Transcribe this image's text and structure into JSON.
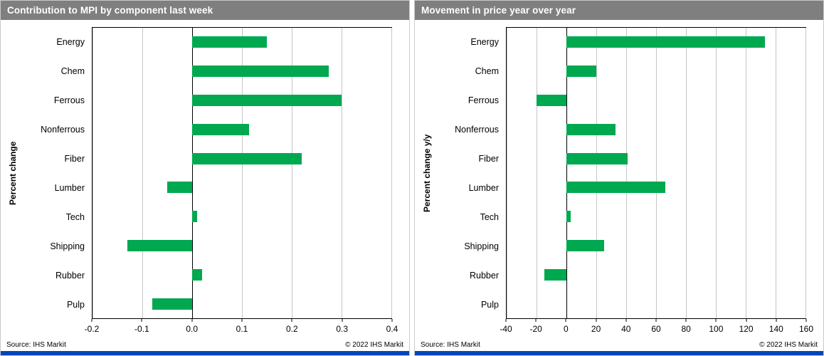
{
  "colors": {
    "bar_green": "#00A850",
    "header_background": "#7F7F7F",
    "header_text": "#FFFFFF",
    "accent_bar_blue": "#0047BB",
    "gridline": "#C6C6C6",
    "axis": "#000000"
  },
  "chart_data": [
    {
      "type": "bar",
      "orientation": "horizontal",
      "title": "Contribution to MPI by component last week",
      "ylabel": "Percent change",
      "xlabel": "",
      "categories": [
        "Energy",
        "Chem",
        "Ferrous",
        "Nonferrous",
        "Fiber",
        "Lumber",
        "Tech",
        "Shipping",
        "Rubber",
        "Pulp"
      ],
      "values": [
        0.15,
        0.275,
        0.3,
        0.115,
        0.22,
        -0.05,
        0.01,
        -0.13,
        0.02,
        -0.08
      ],
      "xlim": [
        -0.2,
        0.4
      ],
      "xticks": [
        -0.2,
        -0.1,
        0,
        0.1,
        0.2,
        0.3,
        0.4
      ],
      "xtick_labels": [
        "-0.2",
        "-0.1",
        "0.0",
        "0.1",
        "0.2",
        "0.3",
        "0.4"
      ],
      "grid": "vertical",
      "source": "Source: IHS Markit",
      "copyright": "© 2022  IHS Markit"
    },
    {
      "type": "bar",
      "orientation": "horizontal",
      "title": "Movement in price year over year",
      "ylabel": "Percent change y/y",
      "xlabel": "",
      "categories": [
        "Energy",
        "Chem",
        "Ferrous",
        "Nonferrous",
        "Fiber",
        "Lumber",
        "Tech",
        "Shipping",
        "Rubber",
        "Pulp"
      ],
      "values": [
        133,
        20,
        -20,
        33,
        41,
        66,
        3,
        25,
        -15,
        0
      ],
      "xlim": [
        -40,
        160
      ],
      "xticks": [
        -40,
        -20,
        0,
        20,
        40,
        60,
        80,
        100,
        120,
        140,
        160
      ],
      "xtick_labels": [
        "-40",
        "-20",
        "0",
        "20",
        "40",
        "60",
        "80",
        "100",
        "120",
        "140",
        "160"
      ],
      "grid": "vertical",
      "source": "Source: IHS Markit",
      "copyright": "© 2022  IHS Markit"
    }
  ]
}
